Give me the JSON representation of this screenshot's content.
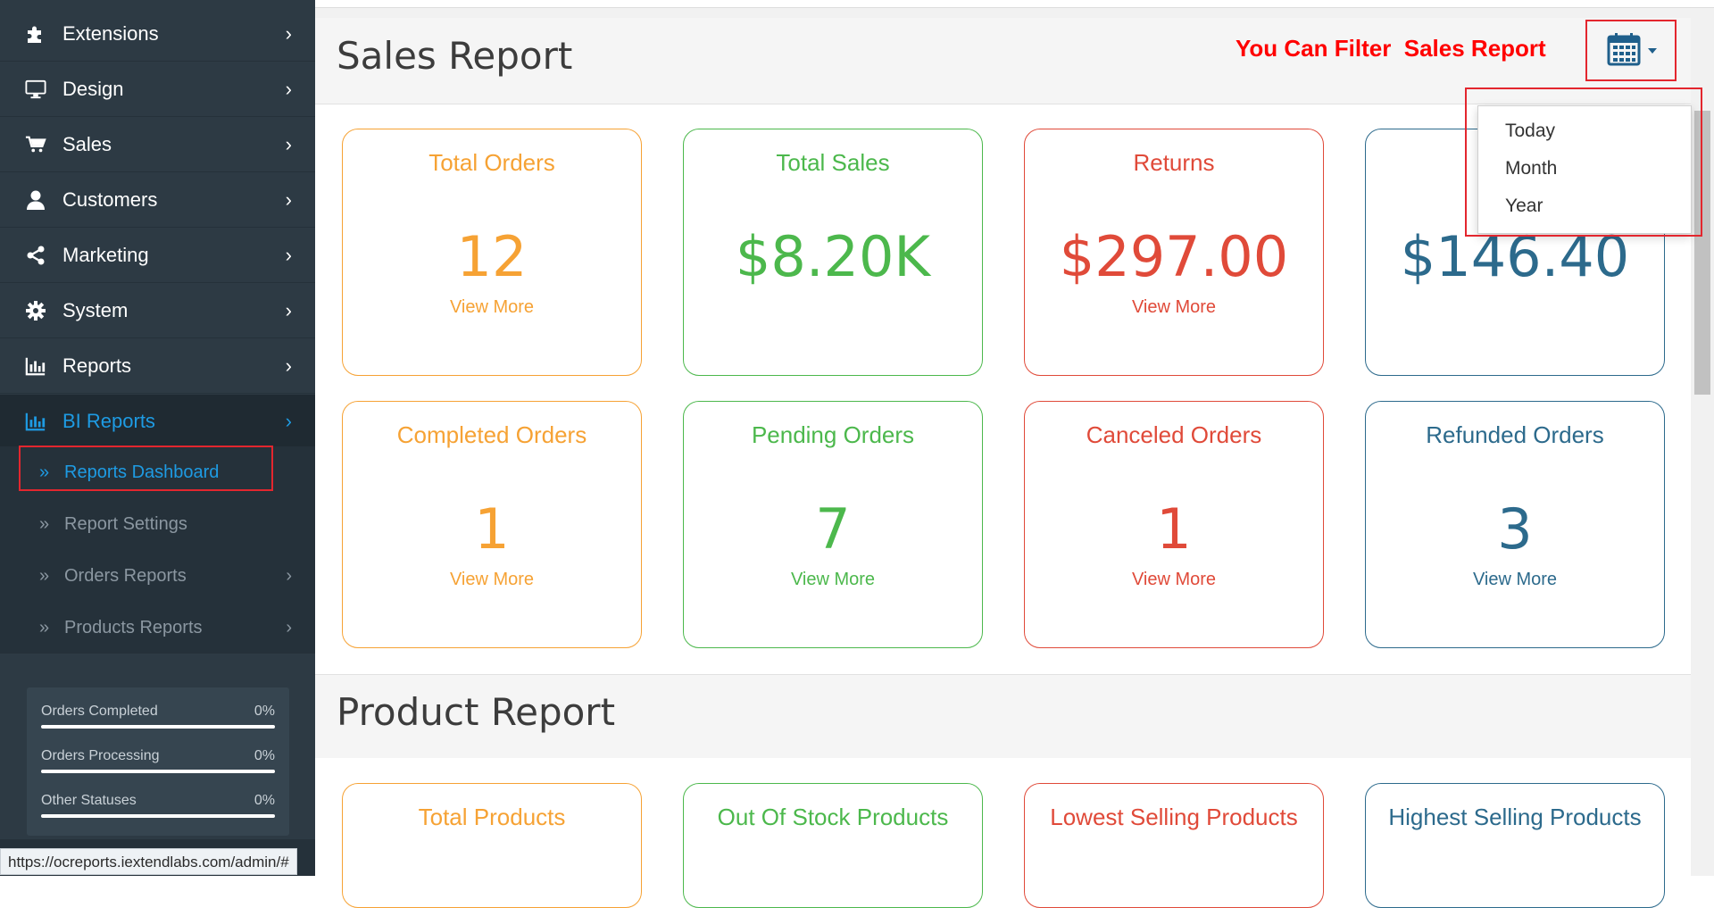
{
  "sidebar": {
    "items": [
      {
        "label": "Extensions",
        "icon": "puzzle-icon"
      },
      {
        "label": "Design",
        "icon": "monitor-icon"
      },
      {
        "label": "Sales",
        "icon": "cart-icon"
      },
      {
        "label": "Customers",
        "icon": "user-icon"
      },
      {
        "label": "Marketing",
        "icon": "share-icon"
      },
      {
        "label": "System",
        "icon": "gear-icon"
      },
      {
        "label": "Reports",
        "icon": "bar-chart-icon"
      },
      {
        "label": "BI Reports",
        "icon": "bar-chart-icon"
      }
    ],
    "chevron": "›",
    "sub_items": [
      {
        "label": "Reports Dashboard"
      },
      {
        "label": "Report Settings"
      },
      {
        "label": "Orders Reports"
      },
      {
        "label": "Products Reports"
      }
    ],
    "double_chevron": "»",
    "stats": [
      {
        "label": "Orders Completed",
        "value": "0%"
      },
      {
        "label": "Orders Processing",
        "value": "0%"
      },
      {
        "label": "Other Statuses",
        "value": "0%"
      }
    ]
  },
  "status_url": "https://ocreports.iextendlabs.com/admin/#",
  "sales_report": {
    "title": "Sales Report",
    "filter_note": "You Can Filter  Sales Report",
    "cards": [
      {
        "title": "Total Orders",
        "value": "12",
        "more": "View More",
        "color": "orange"
      },
      {
        "title": "Total Sales",
        "value": "$8.20K",
        "more": "",
        "color": "green"
      },
      {
        "title": "Returns",
        "value": "$297.00",
        "more": "View More",
        "color": "red"
      },
      {
        "title": "",
        "value": "$146.40",
        "more": "",
        "color": "blue"
      },
      {
        "title": "Completed Orders",
        "value": "1",
        "more": "View More",
        "color": "orange"
      },
      {
        "title": "Pending Orders",
        "value": "7",
        "more": "View More",
        "color": "green"
      },
      {
        "title": "Canceled Orders",
        "value": "1",
        "more": "View More",
        "color": "red"
      },
      {
        "title": "Refunded Orders",
        "value": "3",
        "more": "View More",
        "color": "blue"
      }
    ]
  },
  "date_filter": {
    "options": [
      "Today",
      "Month",
      "Year"
    ]
  },
  "product_report": {
    "title": "Product Report",
    "cards": [
      {
        "title": "Total Products",
        "color": "orange"
      },
      {
        "title": "Out Of Stock Products",
        "color": "green"
      },
      {
        "title": "Lowest Selling Products",
        "color": "red"
      },
      {
        "title": "Highest Selling Products",
        "color": "blue"
      }
    ]
  },
  "colors": {
    "accent": "#1e9be3",
    "sidebar_bg": "#2d3a44",
    "annotation_red": "#e3262e",
    "orange": "#f6a234",
    "green": "#4cb84c",
    "red": "#e04a39",
    "blue": "#2c6a8c"
  }
}
